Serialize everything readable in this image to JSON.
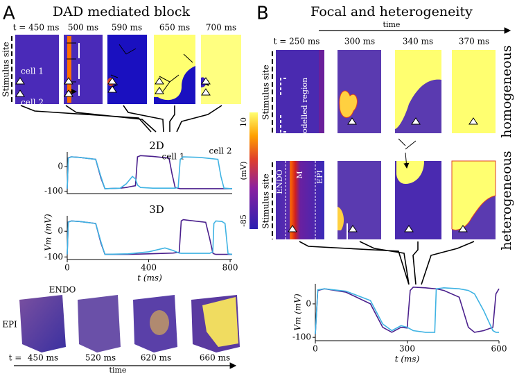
{
  "panel_a": {
    "label": "A",
    "title": "DAD mediated block",
    "snapshot_times": [
      "t = 450 ms",
      "500 ms",
      "590 ms",
      "650 ms",
      "700 ms"
    ],
    "stimulus_label": "Stimulus site",
    "cell_labels": [
      "cell 1",
      "cell 2"
    ],
    "volume_labels": {
      "endo": "ENDO",
      "epi": "EPI"
    },
    "volume_time_prefix": "t =",
    "volume_times": [
      "450 ms",
      "520 ms",
      "620 ms",
      "660 ms"
    ],
    "time_arrow": "time"
  },
  "colorbar": {
    "max": 10,
    "unit": "(mV)",
    "min": -85
  },
  "panel_b": {
    "label": "B",
    "title": "Focal and heterogeneity",
    "time_arrow": "time",
    "snapshot_times": [
      "t = 250 ms",
      "300 ms",
      "340 ms",
      "370 ms"
    ],
    "row_labels": [
      "homogeneous",
      "heterogeneous"
    ],
    "stimulus_label": "Stimulus site",
    "region_label": "remodelled region",
    "layer_labels": [
      "ENDO",
      "M",
      "EPI"
    ]
  },
  "chart_data": [
    {
      "type": "line",
      "title": "2D",
      "x": [
        0,
        5,
        20,
        60,
        140,
        165,
        185,
        260,
        290,
        320,
        335,
        345,
        360,
        420,
        500,
        515,
        530,
        545,
        555,
        570,
        650,
        740,
        755,
        770,
        810
      ],
      "series": [
        {
          "name": "cell 1",
          "color": "#4a1f8c",
          "values": [
            -90,
            36,
            40,
            38,
            30,
            -45,
            -90,
            -88,
            -85,
            -80,
            -78,
            40,
            45,
            42,
            35,
            -30,
            -85,
            -88,
            -90,
            -90,
            -90,
            -90,
            -90,
            -90,
            -90
          ]
        },
        {
          "name": "cell 2",
          "color": "#3fb3e3",
          "values": [
            -90,
            35,
            40,
            38,
            30,
            -40,
            -90,
            -88,
            -70,
            -40,
            -50,
            -75,
            -85,
            -88,
            -88,
            -88,
            -88,
            -85,
            30,
            40,
            38,
            30,
            -40,
            -88,
            -90
          ]
        }
      ],
      "xlim": [
        0,
        810
      ],
      "ylim": [
        -110,
        60
      ],
      "yticks": [
        -100,
        0
      ]
    },
    {
      "type": "line",
      "title": "3D",
      "x": [
        0,
        5,
        20,
        60,
        140,
        165,
        185,
        300,
        400,
        480,
        520,
        550,
        560,
        570,
        600,
        680,
        700,
        715,
        720,
        730,
        760,
        775,
        790,
        810
      ],
      "series": [
        {
          "color": "#4a1f8c",
          "values": [
            -90,
            36,
            40,
            38,
            30,
            -45,
            -90,
            -90,
            -88,
            -86,
            -85,
            -82,
            40,
            45,
            42,
            35,
            -30,
            -85,
            -88,
            -90,
            -90,
            -90,
            -90,
            -90
          ]
        },
        {
          "color": "#3fb3e3",
          "values": [
            -90,
            35,
            40,
            38,
            30,
            -40,
            -90,
            -88,
            -80,
            -65,
            -75,
            -85,
            -86,
            -86,
            -86,
            -86,
            -86,
            -80,
            30,
            40,
            38,
            30,
            -88,
            -90
          ]
        }
      ],
      "xlim": [
        0,
        810
      ],
      "ylim": [
        -110,
        60
      ],
      "xticks": [
        0,
        400,
        800
      ],
      "yticks": [
        -100,
        0
      ],
      "xlabel": "t (ms)",
      "ylabel": "Vm (mV)"
    },
    {
      "type": "line",
      "x": [
        0,
        8,
        30,
        100,
        180,
        220,
        250,
        280,
        300,
        310,
        320,
        360,
        390,
        395,
        420,
        470,
        500,
        520,
        550,
        580,
        590,
        600
      ],
      "series": [
        {
          "color": "#4a1f8c",
          "values": [
            -90,
            40,
            45,
            35,
            0,
            -70,
            -85,
            -70,
            -72,
            40,
            50,
            48,
            45,
            45,
            40,
            20,
            -70,
            -85,
            -80,
            -70,
            30,
            45
          ]
        },
        {
          "color": "#3fb3e3",
          "values": [
            -90,
            42,
            45,
            38,
            10,
            -60,
            -80,
            -65,
            -70,
            -75,
            -80,
            -85,
            -85,
            45,
            48,
            45,
            40,
            30,
            -20,
            -80,
            -85,
            -85
          ]
        }
      ],
      "xlim": [
        0,
        600
      ],
      "ylim": [
        -110,
        60
      ],
      "xticks": [
        0,
        300,
        600
      ],
      "yticks": [
        -100,
        0
      ],
      "xlabel": "t (ms)",
      "ylabel": "Vm (mV)"
    }
  ]
}
